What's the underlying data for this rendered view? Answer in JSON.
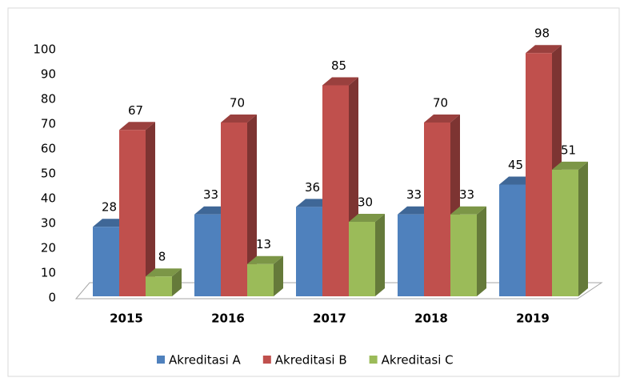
{
  "chart_data": {
    "type": "bar3d",
    "categories": [
      "2015",
      "2016",
      "2017",
      "2018",
      "2019"
    ],
    "series": [
      {
        "name": "Akreditasi A",
        "color": "#4f81bd",
        "values": [
          28,
          33,
          36,
          33,
          45
        ]
      },
      {
        "name": "Akreditasi B",
        "color": "#c0504d",
        "values": [
          67,
          70,
          85,
          70,
          98
        ]
      },
      {
        "name": "Akreditasi C",
        "color": "#9bbb59",
        "values": [
          8,
          13,
          30,
          33,
          51
        ]
      }
    ],
    "ylim": [
      0,
      100
    ],
    "yticks": [
      0,
      10,
      20,
      30,
      40,
      50,
      60,
      70,
      80,
      90,
      100
    ],
    "legend": "bottom"
  }
}
